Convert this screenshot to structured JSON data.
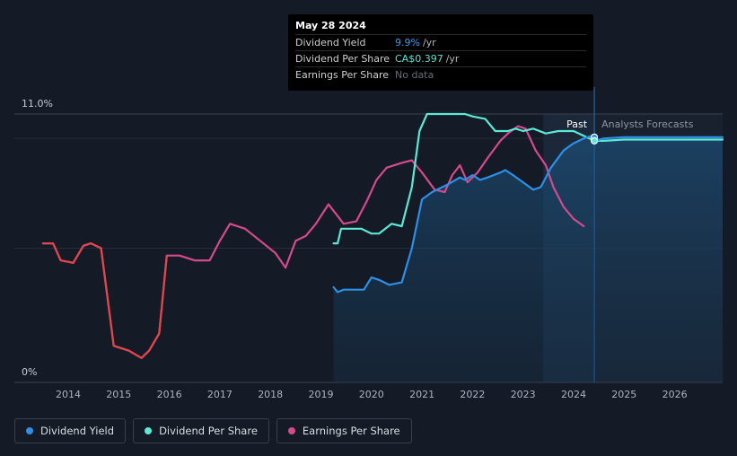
{
  "tooltip": {
    "date": "May 28 2024",
    "rows": [
      {
        "label": "Dividend Yield",
        "value": "9.9%",
        "unit": "/yr",
        "color": "#3d9be9"
      },
      {
        "label": "Dividend Per Share",
        "value": "CA$0.397",
        "unit": "/yr",
        "color": "#5de0d0"
      },
      {
        "label": "Earnings Per Share",
        "value": "No data",
        "unit": "",
        "color": "#666e7a"
      }
    ]
  },
  "legend": [
    {
      "label": "Dividend Yield",
      "color": "#2d8fe6"
    },
    {
      "label": "Dividend Per Share",
      "color": "#5de8d6"
    },
    {
      "label": "Earnings Per Share",
      "color": "#d44a8e"
    }
  ],
  "chart_data": {
    "type": "line",
    "y_axis": {
      "label_top": "11.0%",
      "label_bottom": "0%"
    },
    "past_label": "Past",
    "forecast_label": "Analysts Forecasts",
    "past_boundary": 2024.41,
    "x_ticks": [
      "2014",
      "2015",
      "2016",
      "2017",
      "2018",
      "2019",
      "2020",
      "2021",
      "2022",
      "2023",
      "2024",
      "2025",
      "2026"
    ],
    "series": [
      {
        "name": "Dividend Yield",
        "color": "#2d8fe6",
        "points": [
          [
            2019.25,
            3.9
          ],
          [
            2019.33,
            3.7
          ],
          [
            2019.45,
            3.8
          ],
          [
            2019.6,
            3.8
          ],
          [
            2019.85,
            3.8
          ],
          [
            2020.0,
            4.3
          ],
          [
            2020.15,
            4.2
          ],
          [
            2020.35,
            4.0
          ],
          [
            2020.6,
            4.1
          ],
          [
            2020.8,
            5.5
          ],
          [
            2021.0,
            7.5
          ],
          [
            2021.2,
            7.8
          ],
          [
            2021.5,
            8.1
          ],
          [
            2021.75,
            8.4
          ],
          [
            2021.85,
            8.3
          ],
          [
            2022.0,
            8.5
          ],
          [
            2022.15,
            8.3
          ],
          [
            2022.3,
            8.4
          ],
          [
            2022.55,
            8.6
          ],
          [
            2022.65,
            8.7
          ],
          [
            2022.8,
            8.5
          ],
          [
            2023.0,
            8.2
          ],
          [
            2023.2,
            7.9
          ],
          [
            2023.35,
            8.0
          ],
          [
            2023.55,
            8.8
          ],
          [
            2023.8,
            9.5
          ],
          [
            2024.0,
            9.8
          ],
          [
            2024.2,
            10.0
          ],
          [
            2024.35,
            10.1
          ],
          [
            2024.41,
            9.9
          ],
          [
            2024.6,
            10.0
          ],
          [
            2025.0,
            10.05
          ],
          [
            2027.0,
            10.05
          ]
        ]
      },
      {
        "name": "Dividend Per Share",
        "color": "#5de8d6",
        "points": [
          [
            2019.25,
            5.7
          ],
          [
            2019.33,
            5.7
          ],
          [
            2019.4,
            6.3
          ],
          [
            2019.5,
            6.3
          ],
          [
            2019.8,
            6.3
          ],
          [
            2020.0,
            6.1
          ],
          [
            2020.15,
            6.1
          ],
          [
            2020.4,
            6.5
          ],
          [
            2020.6,
            6.4
          ],
          [
            2020.8,
            8.0
          ],
          [
            2020.95,
            10.3
          ],
          [
            2021.1,
            11.0
          ],
          [
            2021.4,
            11.0
          ],
          [
            2021.7,
            11.0
          ],
          [
            2021.85,
            11.0
          ],
          [
            2022.0,
            10.9
          ],
          [
            2022.25,
            10.8
          ],
          [
            2022.45,
            10.3
          ],
          [
            2022.7,
            10.3
          ],
          [
            2022.85,
            10.4
          ],
          [
            2023.0,
            10.3
          ],
          [
            2023.2,
            10.4
          ],
          [
            2023.45,
            10.2
          ],
          [
            2023.7,
            10.3
          ],
          [
            2024.0,
            10.3
          ],
          [
            2024.41,
            9.9
          ],
          [
            2024.6,
            9.9
          ],
          [
            2025.0,
            9.95
          ],
          [
            2027.0,
            9.95
          ]
        ]
      },
      {
        "name": "Earnings Per Share",
        "color": "#d44a8e",
        "points": [
          [
            2013.5,
            5.7
          ],
          [
            2013.7,
            5.7
          ],
          [
            2013.85,
            5.0
          ],
          [
            2014.1,
            4.9
          ],
          [
            2014.3,
            5.6
          ],
          [
            2014.45,
            5.7
          ],
          [
            2014.65,
            5.5
          ],
          [
            2014.9,
            1.5
          ],
          [
            2015.2,
            1.3
          ],
          [
            2015.45,
            1.0
          ],
          [
            2015.6,
            1.3
          ],
          [
            2015.8,
            2.0
          ],
          [
            2015.95,
            5.2
          ],
          [
            2016.2,
            5.2
          ],
          [
            2016.5,
            5.0
          ],
          [
            2016.8,
            5.0
          ],
          [
            2017.0,
            5.8
          ],
          [
            2017.2,
            6.5
          ],
          [
            2017.5,
            6.3
          ],
          [
            2017.8,
            5.8
          ],
          [
            2018.1,
            5.3
          ],
          [
            2018.3,
            4.7
          ],
          [
            2018.5,
            5.8
          ],
          [
            2018.7,
            6.0
          ],
          [
            2018.9,
            6.5
          ],
          [
            2019.15,
            7.3
          ],
          [
            2019.3,
            6.9
          ],
          [
            2019.45,
            6.5
          ],
          [
            2019.7,
            6.6
          ],
          [
            2019.9,
            7.4
          ],
          [
            2020.1,
            8.3
          ],
          [
            2020.3,
            8.8
          ],
          [
            2020.6,
            9.0
          ],
          [
            2020.8,
            9.1
          ],
          [
            2021.0,
            8.6
          ],
          [
            2021.25,
            7.9
          ],
          [
            2021.45,
            7.8
          ],
          [
            2021.6,
            8.5
          ],
          [
            2021.75,
            8.9
          ],
          [
            2021.9,
            8.2
          ],
          [
            2022.1,
            8.6
          ],
          [
            2022.3,
            9.2
          ],
          [
            2022.55,
            9.9
          ],
          [
            2022.7,
            10.2
          ],
          [
            2022.9,
            10.5
          ],
          [
            2023.05,
            10.4
          ],
          [
            2023.25,
            9.5
          ],
          [
            2023.45,
            8.9
          ],
          [
            2023.6,
            8.0
          ],
          [
            2023.8,
            7.2
          ],
          [
            2024.0,
            6.7
          ],
          [
            2024.2,
            6.4
          ]
        ]
      }
    ]
  }
}
